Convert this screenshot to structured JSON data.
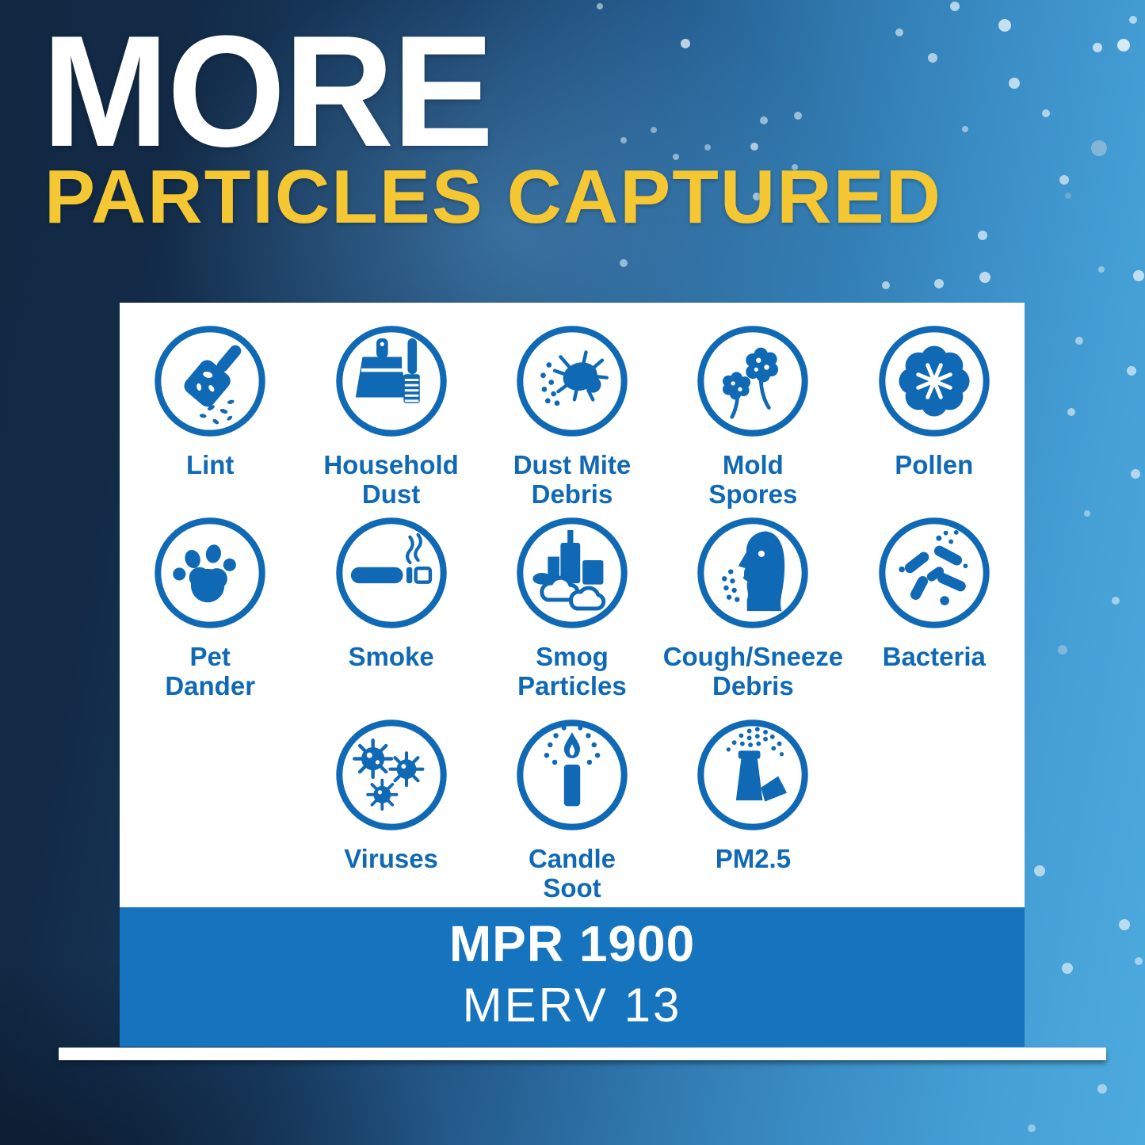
{
  "title": {
    "line1": "MORE",
    "line2": "PARTICLES CAPTURED"
  },
  "panel": {
    "rows": [
      {
        "items": [
          {
            "label_lines": [
              "Lint"
            ],
            "icon": "lint-roller-icon"
          },
          {
            "label_lines": [
              "Household",
              "Dust"
            ],
            "icon": "dustpan-brush-icon"
          },
          {
            "label_lines": [
              "Dust Mite",
              "Debris"
            ],
            "icon": "dust-mite-icon"
          },
          {
            "label_lines": [
              "Mold",
              "Spores"
            ],
            "icon": "mold-spores-icon"
          },
          {
            "label_lines": [
              "Pollen"
            ],
            "icon": "pollen-flower-icon"
          }
        ]
      },
      {
        "items": [
          {
            "label_lines": [
              "Pet",
              "Dander"
            ],
            "icon": "paw-print-icon"
          },
          {
            "label_lines": [
              "Smoke"
            ],
            "icon": "cigarette-icon"
          },
          {
            "label_lines": [
              "Smog",
              "Particles"
            ],
            "icon": "city-smog-icon"
          },
          {
            "label_lines": [
              "Cough/Sneeze",
              "Debris"
            ],
            "icon": "sneezing-face-icon"
          },
          {
            "label_lines": [
              "Bacteria"
            ],
            "icon": "bacteria-icon"
          }
        ]
      },
      {
        "items": [
          {
            "label_lines": [
              "Viruses"
            ],
            "icon": "virus-icon"
          },
          {
            "label_lines": [
              "Candle",
              "Soot"
            ],
            "icon": "candle-soot-icon"
          },
          {
            "label_lines": [
              "PM2.5"
            ],
            "icon": "smokestack-icon"
          }
        ]
      }
    ]
  },
  "footer": {
    "mpr": "MPR 1900",
    "merv": "MERV 13"
  },
  "colors": {
    "accent_blue": "#1069B4",
    "bar_blue": "#1674BE",
    "title_yellow": "#F4C733",
    "panel_bg": "#FFFFFF",
    "bg_dark_navy": "#122944",
    "bg_light_blue": "#4DAADE"
  }
}
